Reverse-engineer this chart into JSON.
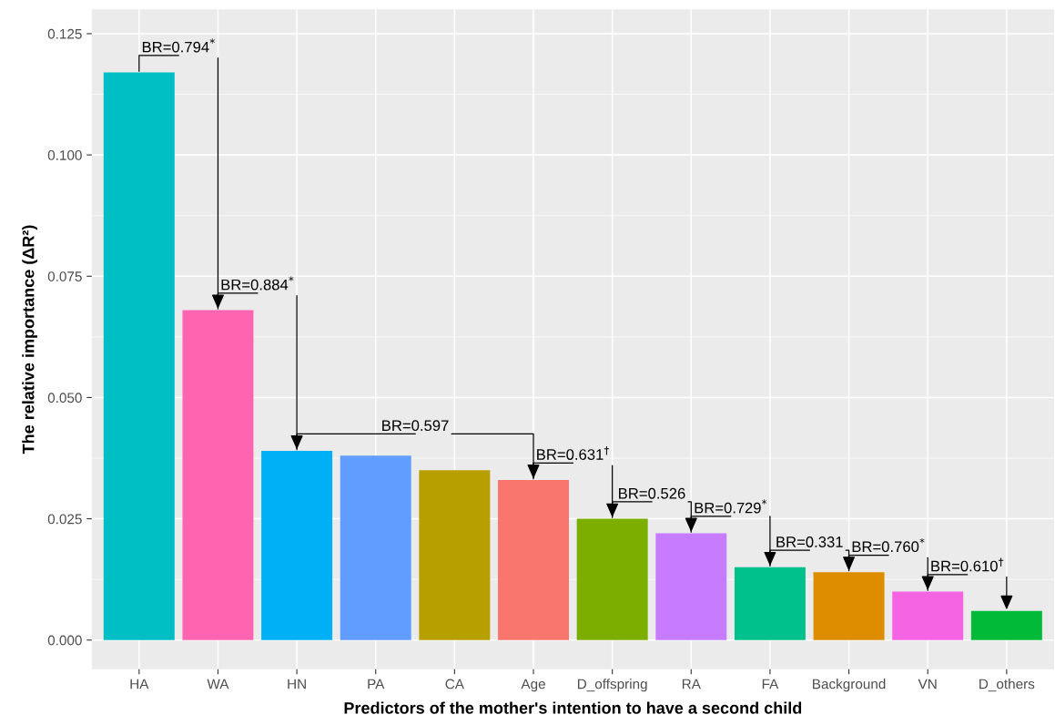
{
  "chart_data": {
    "type": "bar",
    "xlabel": "Predictors of the mother's intention to have a second child",
    "ylabel": "The relative importance (ΔR²)",
    "categories": [
      "HA",
      "WA",
      "HN",
      "PA",
      "CA",
      "Age",
      "D_offspring",
      "RA",
      "FA",
      "Background",
      "VN",
      "D_others"
    ],
    "values": [
      0.117,
      0.068,
      0.039,
      0.038,
      0.035,
      0.033,
      0.025,
      0.022,
      0.015,
      0.014,
      0.01,
      0.006
    ],
    "colors": [
      "#00BFC4",
      "#FF64B0",
      "#00B0F6",
      "#619CFF",
      "#B79F00",
      "#F8766D",
      "#7CAE00",
      "#C77CFF",
      "#00C08B",
      "#DE8C00",
      "#F564E3",
      "#00BA38"
    ],
    "ylim": [
      -0.006,
      0.13
    ],
    "yticks": [
      {
        "value": 0,
        "label": "0.000"
      },
      {
        "value": 0.025,
        "label": "0.025"
      },
      {
        "value": 0.05,
        "label": "0.050"
      },
      {
        "value": 0.075,
        "label": "0.075"
      },
      {
        "value": 0.1,
        "label": "0.100"
      },
      {
        "value": 0.125,
        "label": "0.125"
      }
    ],
    "grid": true,
    "legend": false,
    "annotations": [
      {
        "text": "BR=0.794$^{*}$",
        "x": "WA",
        "y": 0.068
      },
      {
        "text": "BR=0.884$^{*}$",
        "x": "HN",
        "y": 0.039
      },
      {
        "text": "BR=0.597",
        "x": "Age",
        "y": 0.033
      },
      {
        "text": "BR=0.631$^{†}$",
        "x": "D_offspring",
        "y": 0.025
      },
      {
        "text": "BR=0.526",
        "x": "RA",
        "y": 0.022
      },
      {
        "text": "BR=0.729$^{*}$",
        "x": "FA",
        "y": 0.015
      },
      {
        "text": "BR=0.331",
        "x": "Background",
        "y": 0.014
      },
      {
        "text": "BR=0.760$^{*}$",
        "x": "VN",
        "y": 0.01
      },
      {
        "text": "BR=0.610$^{†}$",
        "x": "D_others",
        "y": 0.006
      }
    ]
  }
}
